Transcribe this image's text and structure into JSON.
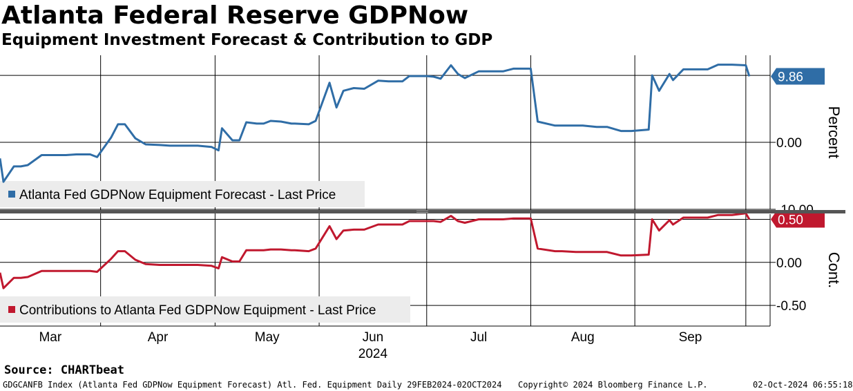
{
  "header": {
    "title": "Atlanta Federal Reserve GDPNow",
    "subtitle": "Equipment Investment Forecast & Contribution to GDP"
  },
  "footer": {
    "source": "Source: CHARTbeat",
    "ticker_info": "GDGCANFB Index (Atlanta Fed GDPNow Equipment Forecast) Atl. Fed. Equipment  Daily 29FEB2024-02OCT2024",
    "copyright": "Copyright© 2024 Bloomberg Finance L.P.",
    "timestamp": "02-Oct-2024 06:55:18"
  },
  "x_axis": {
    "months": [
      "Mar",
      "Apr",
      "May",
      "Jun",
      "Jul",
      "Aug",
      "Sep"
    ],
    "year_label": "2024"
  },
  "colors": {
    "forecast": "#2f6da6",
    "contribution": "#c0182e",
    "grid": "#000000",
    "legend_bg": "#ececec",
    "divider": "#555555"
  },
  "chart_data": [
    {
      "type": "line",
      "ylabel": "Percent",
      "ylim": [
        -10.0,
        13.0
      ],
      "yticks": [
        "0.00",
        "-10.00"
      ],
      "ytick_values": [
        0,
        -10
      ],
      "last_value_label": "9.86",
      "last_value": 9.86,
      "legend": "Atlanta Fed GDPNow Equipment Forecast - Last Price",
      "series": [
        {
          "name": "Atlanta Fed GDPNow Equipment Forecast - Last Price",
          "x": [
            "2024-02-29",
            "2024-03-01",
            "2024-03-04",
            "2024-03-06",
            "2024-03-08",
            "2024-03-12",
            "2024-03-15",
            "2024-03-18",
            "2024-03-19",
            "2024-03-22",
            "2024-03-26",
            "2024-03-28",
            "2024-04-01",
            "2024-04-03",
            "2024-04-05",
            "2024-04-08",
            "2024-04-11",
            "2024-04-15",
            "2024-04-18",
            "2024-04-22",
            "2024-04-25",
            "2024-04-26",
            "2024-04-30",
            "2024-05-02",
            "2024-05-03",
            "2024-05-06",
            "2024-05-08",
            "2024-05-10",
            "2024-05-13",
            "2024-05-15",
            "2024-05-17",
            "2024-05-20",
            "2024-05-23",
            "2024-05-24",
            "2024-05-28",
            "2024-05-30",
            "2024-06-03",
            "2024-06-05",
            "2024-06-07",
            "2024-06-10",
            "2024-06-13",
            "2024-06-17",
            "2024-06-20",
            "2024-06-24",
            "2024-06-26",
            "2024-06-28",
            "2024-07-01",
            "2024-07-03",
            "2024-07-05",
            "2024-07-08",
            "2024-07-10",
            "2024-07-12",
            "2024-07-16",
            "2024-07-18",
            "2024-07-19",
            "2024-07-23",
            "2024-07-26",
            "2024-07-30",
            "2024-07-31",
            "2024-08-02",
            "2024-08-07",
            "2024-08-09",
            "2024-08-13",
            "2024-08-15",
            "2024-08-19",
            "2024-08-22",
            "2024-08-26",
            "2024-08-28",
            "2024-08-29",
            "2024-09-03",
            "2024-09-04",
            "2024-09-06",
            "2024-09-09",
            "2024-09-10",
            "2024-09-13",
            "2024-09-17",
            "2024-09-18",
            "2024-09-20",
            "2024-09-23",
            "2024-09-24",
            "2024-09-26",
            "2024-09-27",
            "2024-10-01",
            "2024-10-02"
          ],
          "values": [
            -2.4,
            -5.9,
            -3.6,
            -3.6,
            -3.4,
            -1.9,
            -1.9,
            -1.9,
            -1.9,
            -1.8,
            -1.8,
            -2.2,
            0.7,
            2.7,
            2.7,
            0.6,
            -0.3,
            -0.4,
            -0.5,
            -0.5,
            -0.5,
            -0.5,
            -0.7,
            -1.2,
            2.1,
            0.3,
            0.3,
            3.0,
            2.8,
            2.8,
            3.2,
            3.1,
            2.8,
            2.8,
            2.7,
            3.2,
            8.9,
            5.2,
            7.7,
            8.1,
            8.0,
            9.2,
            9.1,
            9.1,
            9.9,
            9.9,
            9.9,
            9.8,
            9.5,
            11.5,
            10.2,
            9.6,
            10.6,
            10.6,
            10.6,
            10.6,
            11.0,
            11.0,
            11.0,
            3.1,
            2.5,
            2.5,
            2.5,
            2.5,
            2.3,
            2.3,
            1.7,
            1.7,
            1.7,
            1.9,
            10.0,
            7.7,
            10.2,
            9.3,
            10.9,
            10.9,
            10.9,
            10.9,
            11.6,
            11.6,
            11.6,
            11.6,
            11.5,
            9.86
          ]
        }
      ]
    },
    {
      "type": "line",
      "ylabel": "Cont.",
      "ylim": [
        -0.74,
        0.56
      ],
      "yticks": [
        "0.00",
        "-0.50"
      ],
      "ytick_values": [
        0,
        -0.5
      ],
      "last_value_label": "0.50",
      "last_value": 0.5,
      "legend": "Contributions to Atlanta Fed GDPNow Equipment - Last Price",
      "series": [
        {
          "name": "Contributions to Atlanta Fed GDPNow Equipment - Last Price",
          "x": [
            "2024-02-29",
            "2024-03-01",
            "2024-03-04",
            "2024-03-06",
            "2024-03-08",
            "2024-03-12",
            "2024-03-15",
            "2024-03-18",
            "2024-03-19",
            "2024-03-22",
            "2024-03-26",
            "2024-03-28",
            "2024-04-01",
            "2024-04-03",
            "2024-04-05",
            "2024-04-08",
            "2024-04-11",
            "2024-04-15",
            "2024-04-18",
            "2024-04-22",
            "2024-04-25",
            "2024-04-26",
            "2024-04-30",
            "2024-05-02",
            "2024-05-03",
            "2024-05-06",
            "2024-05-08",
            "2024-05-10",
            "2024-05-13",
            "2024-05-15",
            "2024-05-17",
            "2024-05-20",
            "2024-05-23",
            "2024-05-24",
            "2024-05-28",
            "2024-05-30",
            "2024-06-03",
            "2024-06-05",
            "2024-06-07",
            "2024-06-10",
            "2024-06-13",
            "2024-06-17",
            "2024-06-20",
            "2024-06-24",
            "2024-06-26",
            "2024-06-28",
            "2024-07-01",
            "2024-07-03",
            "2024-07-05",
            "2024-07-08",
            "2024-07-10",
            "2024-07-12",
            "2024-07-16",
            "2024-07-18",
            "2024-07-19",
            "2024-07-23",
            "2024-07-26",
            "2024-07-30",
            "2024-07-31",
            "2024-08-02",
            "2024-08-07",
            "2024-08-09",
            "2024-08-13",
            "2024-08-15",
            "2024-08-19",
            "2024-08-22",
            "2024-08-26",
            "2024-08-28",
            "2024-08-29",
            "2024-09-03",
            "2024-09-04",
            "2024-09-06",
            "2024-09-09",
            "2024-09-10",
            "2024-09-13",
            "2024-09-17",
            "2024-09-18",
            "2024-09-20",
            "2024-09-23",
            "2024-09-24",
            "2024-09-26",
            "2024-09-27",
            "2024-10-01",
            "2024-10-02"
          ],
          "values": [
            -0.12,
            -0.3,
            -0.18,
            -0.18,
            -0.17,
            -0.1,
            -0.1,
            -0.1,
            -0.1,
            -0.1,
            -0.1,
            -0.11,
            0.04,
            0.13,
            0.13,
            0.03,
            -0.02,
            -0.03,
            -0.03,
            -0.03,
            -0.03,
            -0.03,
            -0.04,
            -0.07,
            0.06,
            0.01,
            0.01,
            0.14,
            0.14,
            0.14,
            0.15,
            0.15,
            0.14,
            0.14,
            0.13,
            0.16,
            0.42,
            0.27,
            0.37,
            0.38,
            0.38,
            0.44,
            0.44,
            0.44,
            0.48,
            0.48,
            0.48,
            0.48,
            0.47,
            0.54,
            0.48,
            0.46,
            0.5,
            0.5,
            0.5,
            0.5,
            0.51,
            0.51,
            0.51,
            0.16,
            0.13,
            0.13,
            0.12,
            0.12,
            0.12,
            0.12,
            0.08,
            0.08,
            0.08,
            0.09,
            0.5,
            0.37,
            0.49,
            0.44,
            0.52,
            0.52,
            0.52,
            0.52,
            0.55,
            0.55,
            0.55,
            0.55,
            0.57,
            0.5
          ]
        }
      ]
    }
  ]
}
